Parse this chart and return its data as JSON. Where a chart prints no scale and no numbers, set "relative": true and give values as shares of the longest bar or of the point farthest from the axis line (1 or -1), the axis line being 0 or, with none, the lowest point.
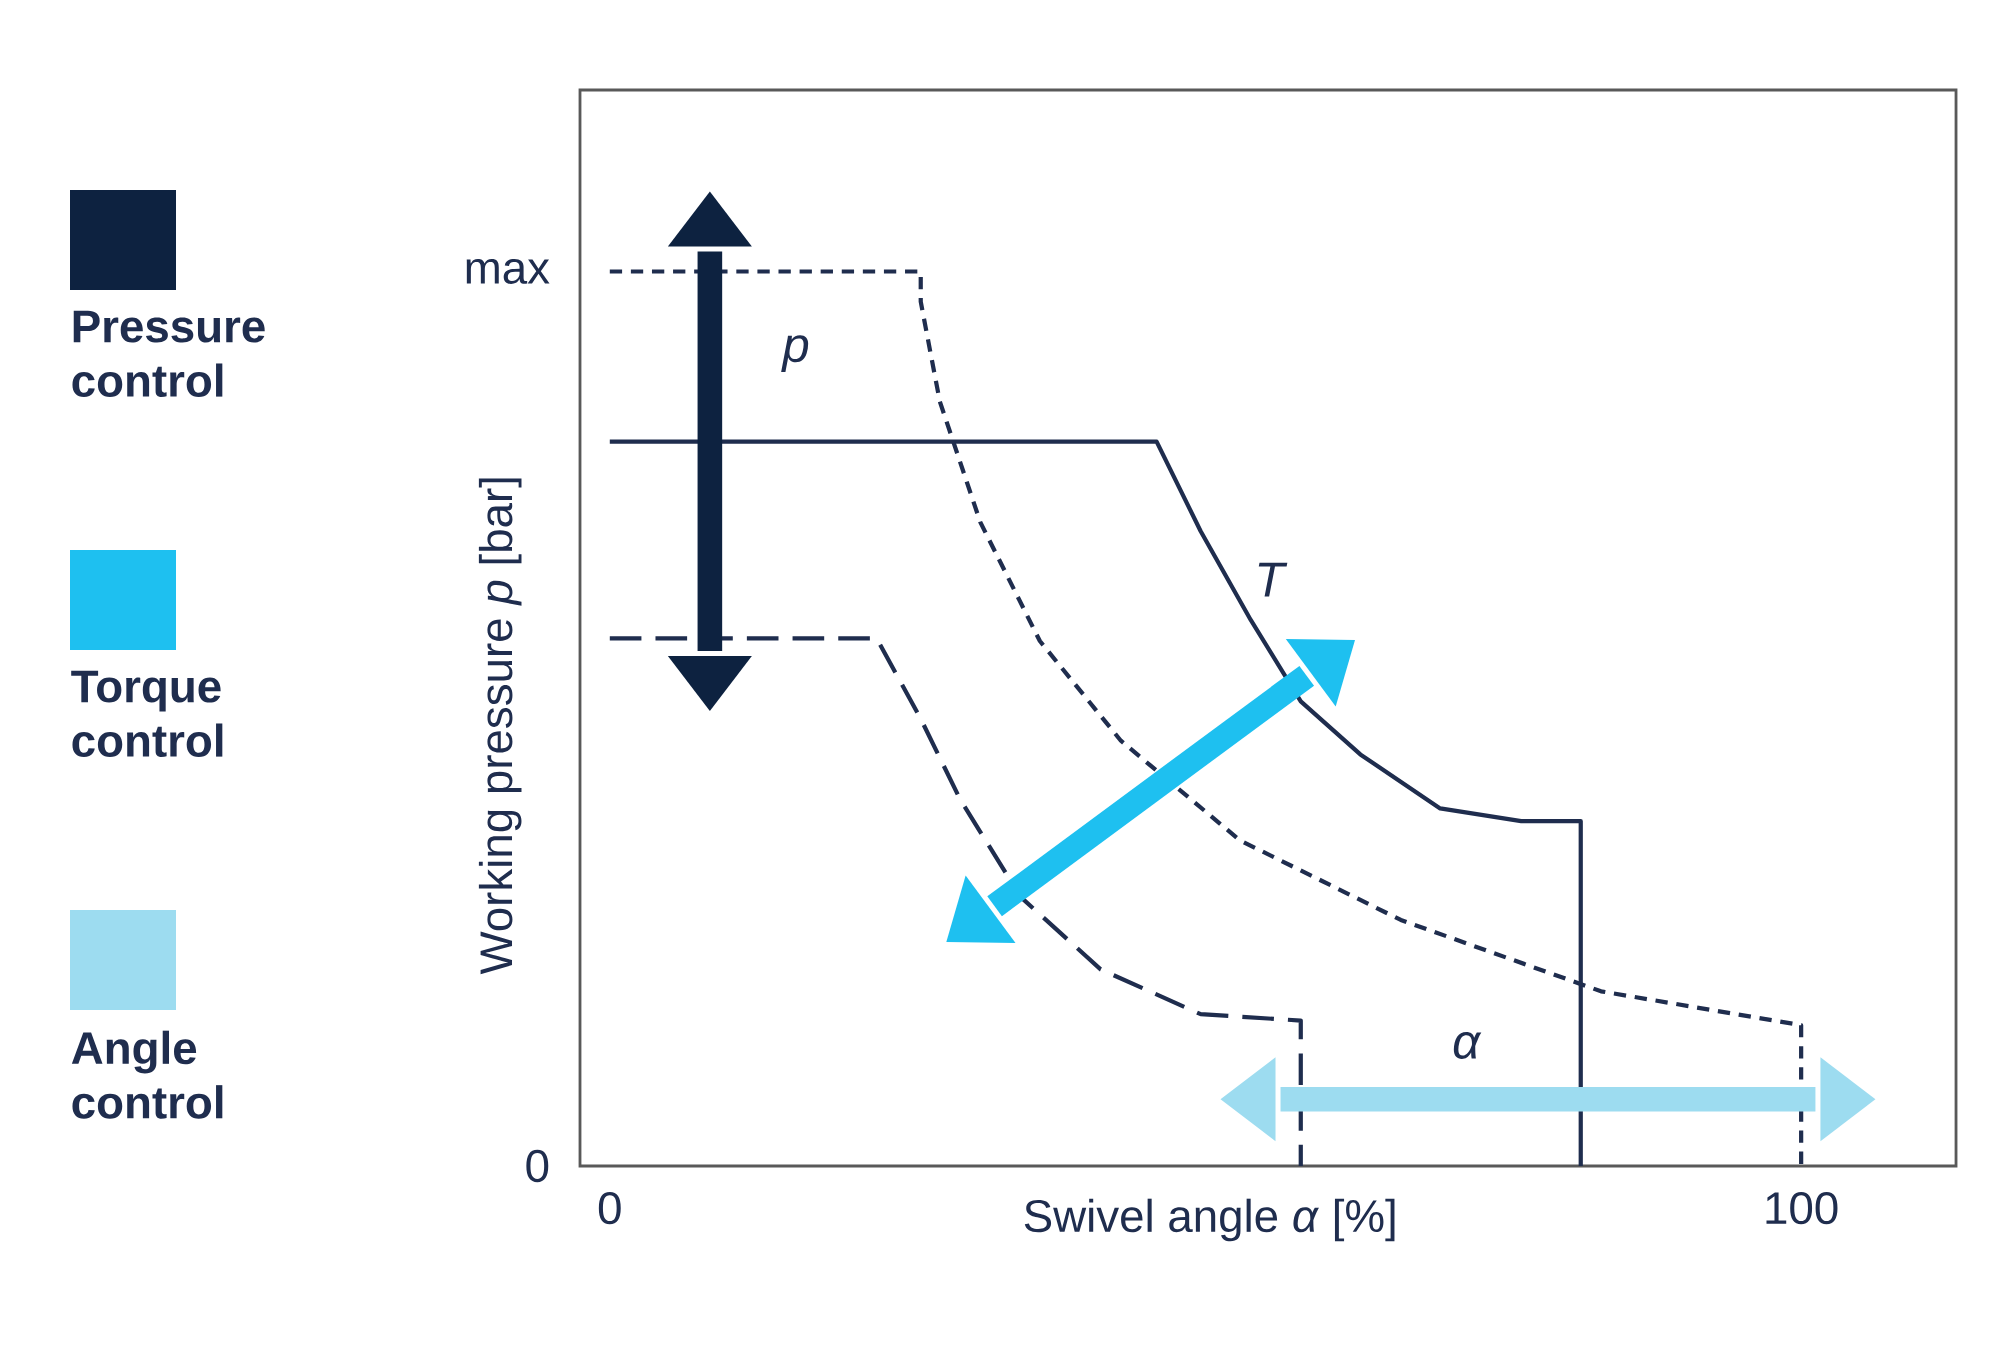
{
  "chart_data": {
    "type": "line",
    "relative": true,
    "xlabel": "Swivel angle *α* [%]",
    "ylabel": "Working pressure *p* [bar]",
    "xlim": [
      -2.5,
      113
    ],
    "xticks": [
      0,
      100
    ],
    "legend": "left",
    "grid": false,
    "marker": "none",
    "series": [
      {
        "color": "#1f2d4e",
        "line_style": "solid",
        "x": [
          0,
          45.9,
          49.6,
          53.8,
          58.0,
          63.0,
          69.7,
          76.5,
          81.5,
          81.5
        ],
        "values": [
          0.792,
          0.792,
          0.694,
          0.597,
          0.508,
          0.45,
          0.391,
          0.377,
          0.377,
          0
        ]
      },
      {
        "color": "#1f2d4e",
        "line_style": "dotted",
        "x": [
          0,
          26.1,
          26.1,
          27.7,
          31.1,
          36.1,
          42.9,
          52.9,
          66.4,
          83.2,
          100,
          100
        ],
        "values": [
          0.978,
          0.978,
          0.945,
          0.836,
          0.704,
          0.574,
          0.465,
          0.356,
          0.269,
          0.191,
          0.154,
          0
        ]
      },
      {
        "color": "#1f2d4e",
        "line_style": "dashed",
        "x": [
          0,
          22.4,
          26.1,
          29.4,
          34.5,
          41.2,
          49.6,
          58.0,
          58.0
        ],
        "values": [
          0.577,
          0.577,
          0.489,
          0.401,
          0.294,
          0.215,
          0.166,
          0.159,
          0
        ]
      },
      {
        "name": "Pressure control",
        "color": "#0d2240",
        "x": [
          8.4,
          8.4
        ],
        "values": [
          0.563,
          1
        ]
      },
      {
        "name": "Torque control",
        "color": "#1ec0f0",
        "x": [
          32.3,
          58.5
        ],
        "values": [
          0.284,
          0.536
        ]
      },
      {
        "name": "Angle control",
        "color": "#9ddcf0",
        "x": [
          56.3,
          101.2
        ],
        "values": [
          0.073,
          0.073
        ]
      }
    ],
    "annotations": [
      "max",
      "0",
      "p",
      "T",
      "α"
    ]
  }
}
